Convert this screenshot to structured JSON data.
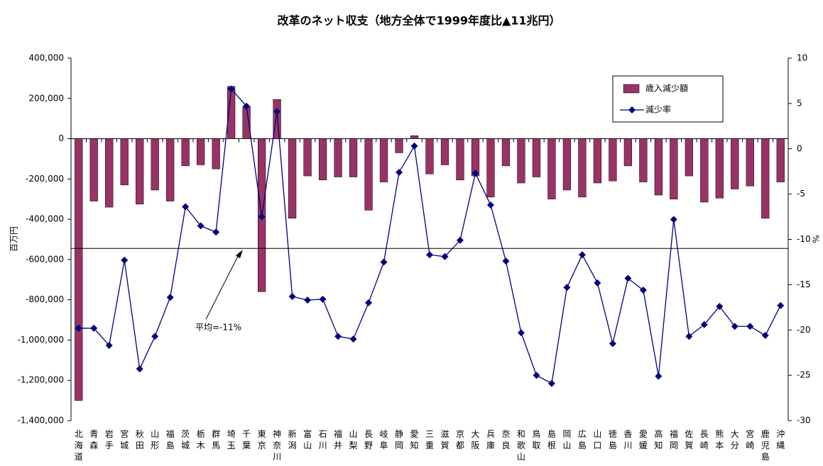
{
  "chart_data": {
    "type": "bar-line",
    "title": "改革のネット収支（地方全体で1999年度比▲11兆円）",
    "y_label": "百万円",
    "y2_label": "%",
    "categories": [
      "北海道",
      "青森",
      "岩手",
      "宮城",
      "秋田",
      "山形",
      "福島",
      "茨城",
      "栃木",
      "群馬",
      "埼玉",
      "千葉",
      "東京",
      "神奈川",
      "新潟",
      "富山",
      "石川",
      "福井",
      "山梨",
      "長野",
      "岐阜",
      "静岡",
      "愛知",
      "三重",
      "滋賀",
      "京都",
      "大阪",
      "兵庫",
      "奈良",
      "和歌山",
      "鳥取",
      "島根",
      "岡山",
      "広島",
      "山口",
      "徳島",
      "香川",
      "愛媛",
      "高知",
      "福岡",
      "佐賀",
      "長崎",
      "熊本",
      "大分",
      "宮崎",
      "鹿児島",
      "沖縄"
    ],
    "series": [
      {
        "name": "歳入減少額",
        "type": "bar",
        "color": "#993366",
        "values": [
          -1300000,
          -310000,
          -340000,
          -230000,
          -325000,
          -255000,
          -310000,
          -135000,
          -130000,
          -150000,
          260000,
          160000,
          -760000,
          195000,
          -395000,
          -185000,
          -205000,
          -190000,
          -190000,
          -355000,
          -215000,
          -70000,
          15000,
          -175000,
          -130000,
          -205000,
          -185000,
          -290000,
          -135000,
          -220000,
          -190000,
          -300000,
          -255000,
          -290000,
          -220000,
          -210000,
          -135000,
          -215000,
          -280000,
          -300000,
          -185000,
          -315000,
          -295000,
          -250000,
          -235000,
          -395000,
          -215000
        ]
      },
      {
        "name": "減少率",
        "type": "line",
        "axis": "y2",
        "color": "#000080",
        "values": [
          -19.8,
          -19.8,
          -21.7,
          -12.3,
          -24.3,
          -20.7,
          -16.4,
          -6.4,
          -8.5,
          -9.2,
          6.6,
          4.7,
          -7.5,
          4.1,
          -16.3,
          -16.7,
          -16.6,
          -20.7,
          -21.0,
          -17.0,
          -12.5,
          -2.6,
          0.3,
          -11.7,
          -11.9,
          -10.1,
          -2.7,
          -6.2,
          -12.4,
          -20.3,
          -25.0,
          -25.9,
          -15.3,
          -11.7,
          -14.8,
          -21.5,
          -14.3,
          -15.6,
          -25.1,
          -7.8,
          -20.7,
          -19.4,
          -17.4,
          -19.6,
          -19.6,
          -20.6,
          -17.3
        ]
      }
    ],
    "ylim": [
      -1400000,
      400000
    ],
    "yticks": [
      {
        "value": -1400000,
        "label": "-1,400,000"
      },
      {
        "value": -1200000,
        "label": "-1,200,000"
      },
      {
        "value": -1000000,
        "label": "-1,000,000"
      },
      {
        "value": -800000,
        "label": "-800,000"
      },
      {
        "value": -600000,
        "label": "-600,000"
      },
      {
        "value": -400000,
        "label": "-400,000"
      },
      {
        "value": -200000,
        "label": "-200,000"
      },
      0,
      {
        "value": 200000,
        "label": "200,000"
      },
      {
        "value": 400000,
        "label": "400,000"
      }
    ],
    "y2lim": [
      -30,
      10
    ],
    "y2ticks": [
      -30,
      -25,
      -20,
      -15,
      -10,
      -5,
      0,
      5,
      10
    ],
    "average": {
      "value": -11,
      "axis": "y2",
      "label": "平均=-11%"
    },
    "legend": "upper right"
  }
}
